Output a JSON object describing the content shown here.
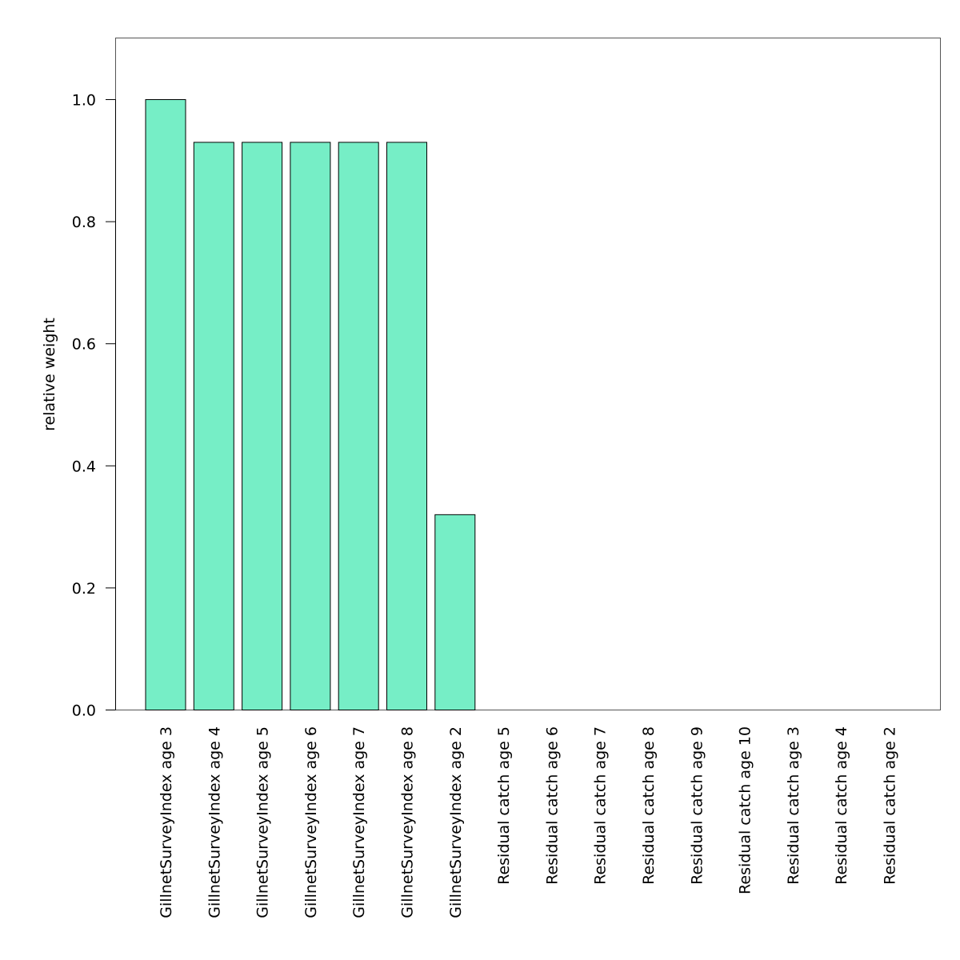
{
  "chart_data": {
    "type": "bar",
    "title": "",
    "xlabel": "",
    "ylabel": "relative weight",
    "ylim": [
      0,
      1.1
    ],
    "yticks": [
      "0.0",
      "0.2",
      "0.4",
      "0.6",
      "0.8",
      "1.0"
    ],
    "grid": false,
    "categories": [
      "GillnetSurveyIndex age 3",
      "GillnetSurveyIndex age 4",
      "GillnetSurveyIndex age 5",
      "GillnetSurveyIndex age 6",
      "GillnetSurveyIndex age 7",
      "GillnetSurveyIndex age 8",
      "GillnetSurveyIndex age 2",
      "Residual catch age 5",
      "Residual catch age 6",
      "Residual catch age 7",
      "Residual catch age 8",
      "Residual catch age 9",
      "Residual catch age 10",
      "Residual catch age 3",
      "Residual catch age 4",
      "Residual catch age 2"
    ],
    "values": [
      1.0,
      0.93,
      0.93,
      0.93,
      0.93,
      0.93,
      0.32,
      0.0,
      0.0,
      0.0,
      0.0,
      0.0,
      0.0,
      0.0,
      0.0,
      0.0
    ],
    "bar_color": "#76EEC6"
  }
}
